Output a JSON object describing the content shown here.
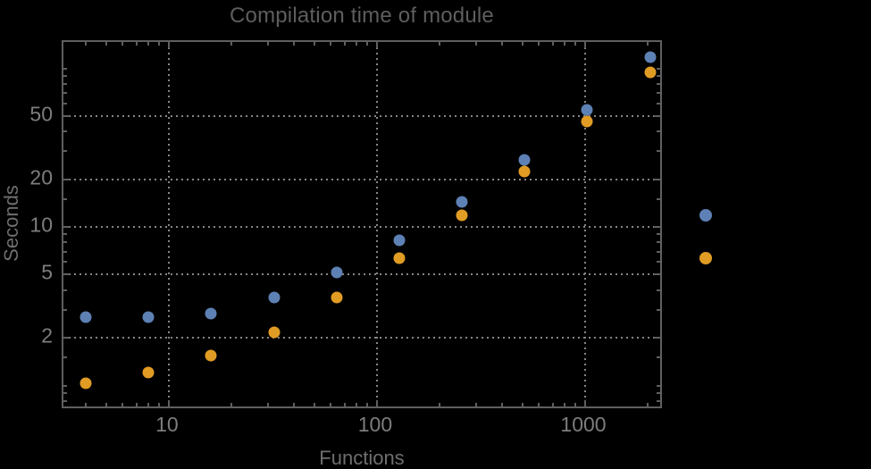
{
  "colors": {
    "background": "#000000",
    "frame": "#5f5f5f",
    "gridline": "#858585",
    "title_text": "#5e5e5e",
    "axis_label_text": "#6e6e6e",
    "tick_label_text": "#7d7d7d",
    "series1": "#5e81b5",
    "series2": "#e19c24"
  },
  "chart_data": {
    "type": "scatter",
    "title": "Compilation time of module",
    "xlabel": "Functions",
    "ylabel": "Seconds",
    "xscale": "log",
    "yscale": "log",
    "xlim": [
      3.12,
      2386
    ],
    "ylim": [
      0.7,
      146.8
    ],
    "grid": "dotted",
    "legend_position": "outside-right",
    "x": [
      4,
      8,
      16,
      32,
      64,
      128,
      256,
      512,
      1024,
      2048
    ],
    "series": [
      {
        "name": "series-1",
        "color": "#5e81b5",
        "marker": "circle",
        "legend_label": "",
        "values": [
          2.7,
          2.7,
          2.85,
          3.6,
          5.15,
          8.2,
          14.4,
          26.6,
          55,
          118
        ]
      },
      {
        "name": "series-2",
        "color": "#e19c24",
        "marker": "circle",
        "legend_label": "",
        "values": [
          1.03,
          1.2,
          1.55,
          2.17,
          3.57,
          6.35,
          11.9,
          22.4,
          46,
          95
        ]
      }
    ],
    "x_ticks": [
      {
        "v": 10,
        "label": "10"
      },
      {
        "v": 100,
        "label": "100"
      },
      {
        "v": 1000,
        "label": "1000"
      }
    ],
    "y_ticks": [
      {
        "v": 2,
        "label": "2"
      },
      {
        "v": 5,
        "label": "5"
      },
      {
        "v": 10,
        "label": "10"
      },
      {
        "v": 20,
        "label": "20"
      },
      {
        "v": 50,
        "label": "50"
      }
    ],
    "x_minor_ticks": [
      4,
      5,
      6,
      7,
      8,
      9,
      20,
      30,
      40,
      50,
      60,
      70,
      80,
      90,
      200,
      300,
      400,
      500,
      600,
      700,
      800,
      900,
      2000
    ],
    "y_minor_ticks": [
      0.8,
      0.9,
      1,
      1.5,
      3,
      4,
      6,
      7,
      8,
      9,
      15,
      30,
      40,
      60,
      70,
      80,
      90,
      100
    ]
  }
}
